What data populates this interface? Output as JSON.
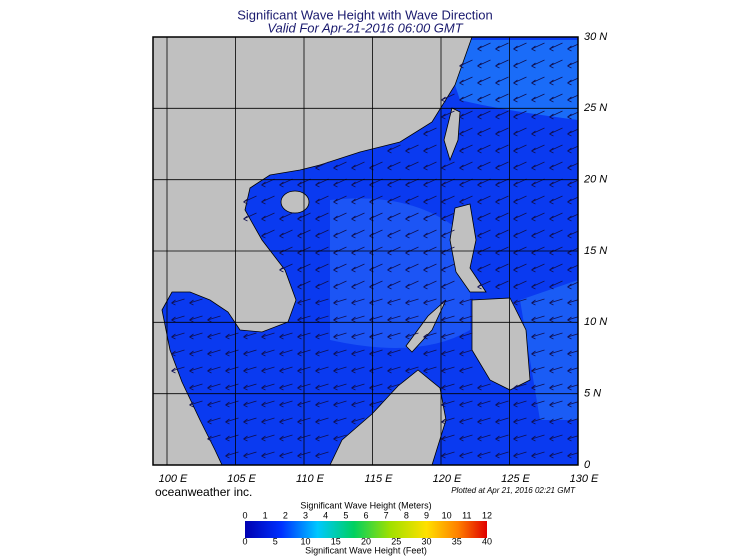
{
  "title": "Significant Wave Height with Wave Direction",
  "subtitle": "Valid For Apr-21-2016 06:00 GMT",
  "map": {
    "lon_ticks": [
      {
        "value": 100,
        "label": "100 E"
      },
      {
        "value": 105,
        "label": "105 E"
      },
      {
        "value": 110,
        "label": "110 E"
      },
      {
        "value": 115,
        "label": "115 E"
      },
      {
        "value": 120,
        "label": "120 E"
      },
      {
        "value": 125,
        "label": "125 E"
      },
      {
        "value": 130,
        "label": "130 E"
      }
    ],
    "lat_ticks": [
      {
        "value": 0,
        "label": "0"
      },
      {
        "value": 5,
        "label": "5 N"
      },
      {
        "value": 10,
        "label": "10 N"
      },
      {
        "value": 15,
        "label": "15 N"
      },
      {
        "value": 20,
        "label": "20 N"
      },
      {
        "value": 25,
        "label": "25 N"
      },
      {
        "value": 30,
        "label": "30 N"
      }
    ]
  },
  "credit": "oceanweather inc.",
  "plotted": "Plotted at Apr 21, 2016 02:21 GMT",
  "colorbar": {
    "title_top": "Significant Wave Height (Meters)",
    "meter_range": [
      0,
      12
    ],
    "meter_ticks": [
      0,
      1,
      2,
      3,
      4,
      5,
      6,
      7,
      8,
      9,
      10,
      11,
      12
    ],
    "feet_range": [
      0,
      40
    ],
    "feet_ticks": [
      0,
      5,
      10,
      15,
      20,
      25,
      30,
      35,
      40
    ],
    "title_bottom": "Significant Wave Height (Feet)"
  }
}
